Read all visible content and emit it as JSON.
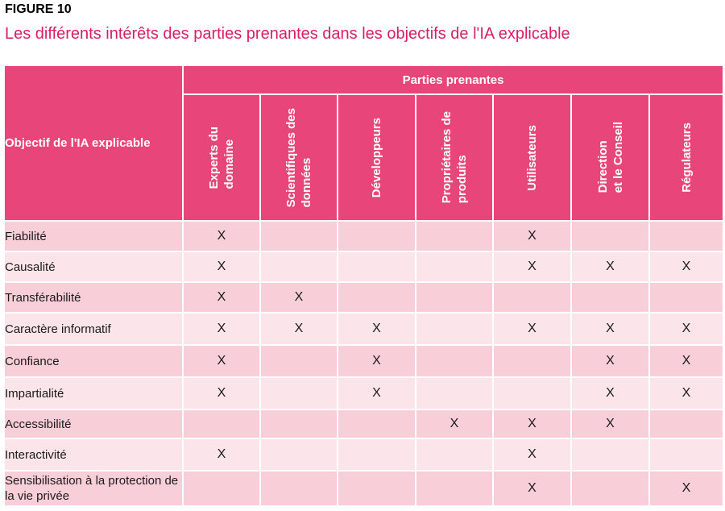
{
  "figure_label": "FIGURE 10",
  "title": "Les différents intérêts des parties prenantes dans les objectifs de l'IA explicable",
  "table": {
    "objective_header": "Objectif de l'IA explicable",
    "group_header": "Parties prenantes",
    "stakeholders": [
      "Experts du\ndomaine",
      "Scientifiques des\ndonnées",
      "Développeurs",
      "Propriétaires de\nproduits",
      "Utilisateurs",
      "Direction\net le Conseil",
      "Régulateurs"
    ],
    "rows": [
      {
        "objective": "Fiabilité",
        "marks": [
          "X",
          "",
          "",
          "",
          "X",
          "",
          ""
        ]
      },
      {
        "objective": "Causalité",
        "marks": [
          "X",
          "",
          "",
          "",
          "X",
          "X",
          "X"
        ]
      },
      {
        "objective": "Transférabilité",
        "marks": [
          "X",
          "X",
          "",
          "",
          "",
          "",
          ""
        ]
      },
      {
        "objective": "Caractère informatif",
        "marks": [
          "X",
          "X",
          "X",
          "",
          "X",
          "X",
          "X"
        ]
      },
      {
        "objective": "Confiance",
        "marks": [
          "X",
          "",
          "X",
          "",
          "",
          "X",
          "X"
        ]
      },
      {
        "objective": "Impartialité",
        "marks": [
          "X",
          "",
          "X",
          "",
          "",
          "X",
          "X"
        ]
      },
      {
        "objective": "Accessibilité",
        "marks": [
          "",
          "",
          "",
          "X",
          "X",
          "X",
          ""
        ]
      },
      {
        "objective": "Interactivité",
        "marks": [
          "X",
          "",
          "",
          "",
          "X",
          "",
          ""
        ]
      },
      {
        "objective": "Sensibilisation à la protection de la vie privée",
        "marks": [
          "",
          "",
          "",
          "",
          "X",
          "",
          "X"
        ]
      }
    ]
  },
  "colors": {
    "title": "#d61f66",
    "header_bg": "#e8457a",
    "row_dark": "#f8cfd8",
    "row_light": "#fce5ea"
  }
}
